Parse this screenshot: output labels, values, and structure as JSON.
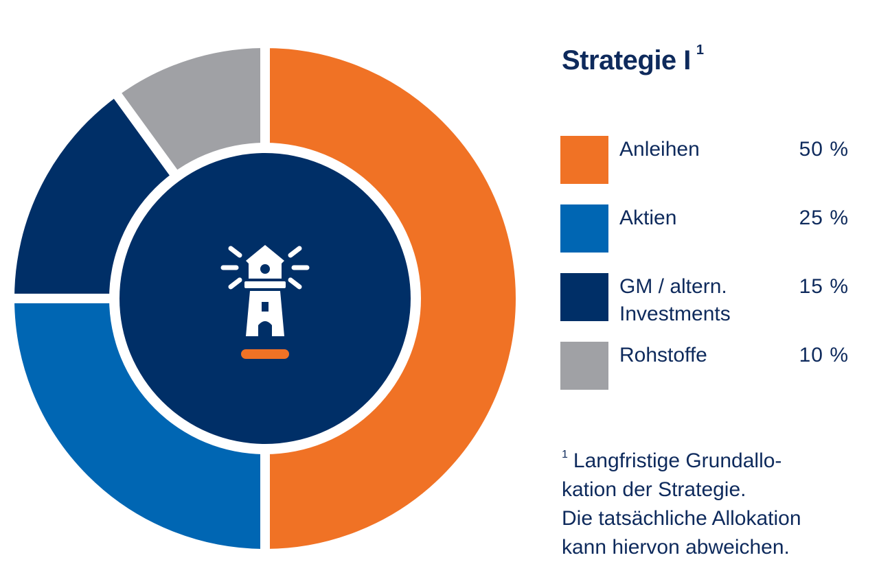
{
  "title": {
    "text": "Strategie I",
    "footnote_mark": "1"
  },
  "chart_data": {
    "type": "pie",
    "donut": true,
    "categories": [
      "Anleihen",
      "Aktien",
      "GM / altern. Investments",
      "Rohstoffe"
    ],
    "values": [
      50,
      25,
      15,
      10
    ],
    "value_labels": [
      "50 %",
      "25 %",
      "15 %",
      "10 %"
    ],
    "colors": [
      "#f07225",
      "#0066b3",
      "#002f67",
      "#a0a1a5"
    ],
    "legend_position": "right",
    "center_icon": "lighthouse-icon"
  },
  "legend": [
    {
      "label": "Anleihen",
      "value": "50 %",
      "color": "#f07225"
    },
    {
      "label": "Aktien",
      "value": "25 %",
      "color": "#0066b3"
    },
    {
      "label": "GM / altern.\nInvestments",
      "value": "15 %",
      "color": "#002f67"
    },
    {
      "label": "Rohstoffe",
      "value": "10 %",
      "color": "#a0a1a5"
    }
  ],
  "footnote": {
    "mark": "1",
    "lines": [
      "Langfristige Grundallo-",
      "kation der Strategie.",
      "Die tatsächliche Allokation",
      "kann hiervon abweichen."
    ]
  },
  "colors": {
    "text": "#0e2a5c",
    "center": "#002f67",
    "accent": "#f07225"
  }
}
